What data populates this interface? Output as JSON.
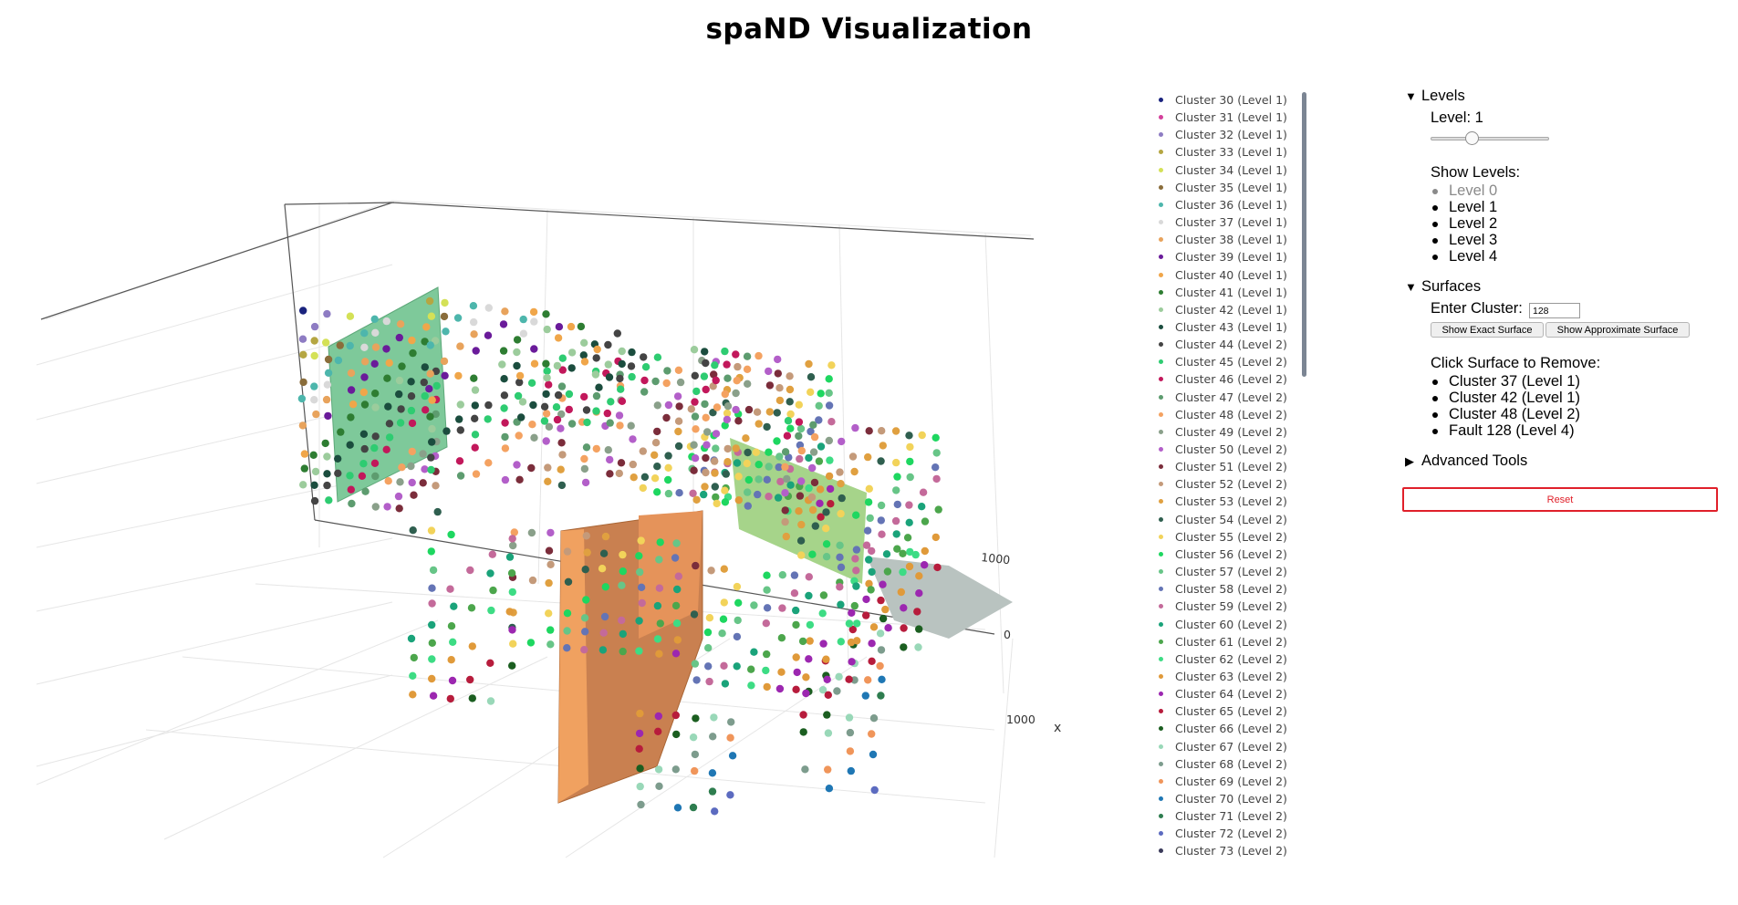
{
  "page": {
    "title": "spaND Visualization"
  },
  "plot": {
    "axis": {
      "x_title": "x",
      "tick_labels": [
        "1000",
        "0",
        "1000"
      ]
    }
  },
  "legend": {
    "items": [
      {
        "label": "Cluster 30 (Level 1)",
        "color": "#1a237e"
      },
      {
        "label": "Cluster 31 (Level 1)",
        "color": "#d4419b"
      },
      {
        "label": "Cluster 32 (Level 1)",
        "color": "#8e7cc3"
      },
      {
        "label": "Cluster 33 (Level 1)",
        "color": "#b5a642"
      },
      {
        "label": "Cluster 34 (Level 1)",
        "color": "#d4e157"
      },
      {
        "label": "Cluster 35 (Level 1)",
        "color": "#8a6d3b"
      },
      {
        "label": "Cluster 36 (Level 1)",
        "color": "#4db6ac"
      },
      {
        "label": "Cluster 37 (Level 1)",
        "color": "#d9d9d9"
      },
      {
        "label": "Cluster 38 (Level 1)",
        "color": "#e8a35c"
      },
      {
        "label": "Cluster 39 (Level 1)",
        "color": "#6a1b9a"
      },
      {
        "label": "Cluster 40 (Level 1)",
        "color": "#f0a64a"
      },
      {
        "label": "Cluster 41 (Level 1)",
        "color": "#2e7d32"
      },
      {
        "label": "Cluster 42 (Level 1)",
        "color": "#9ccc9c"
      },
      {
        "label": "Cluster 43 (Level 1)",
        "color": "#1b4d3e"
      },
      {
        "label": "Cluster 44 (Level 2)",
        "color": "#444444"
      },
      {
        "label": "Cluster 45 (Level 2)",
        "color": "#2ecc71"
      },
      {
        "label": "Cluster 46 (Level 2)",
        "color": "#c2185b"
      },
      {
        "label": "Cluster 47 (Level 2)",
        "color": "#5d9c6f"
      },
      {
        "label": "Cluster 48 (Level 2)",
        "color": "#f4a261"
      },
      {
        "label": "Cluster 49 (Level 2)",
        "color": "#8aa08a"
      },
      {
        "label": "Cluster 50 (Level 2)",
        "color": "#b35fc9"
      },
      {
        "label": "Cluster 51 (Level 2)",
        "color": "#7b2d3b"
      },
      {
        "label": "Cluster 52 (Level 2)",
        "color": "#c49a7a"
      },
      {
        "label": "Cluster 53 (Level 2)",
        "color": "#e0a040"
      },
      {
        "label": "Cluster 54 (Level 2)",
        "color": "#2f5f4f"
      },
      {
        "label": "Cluster 55 (Level 2)",
        "color": "#f2d35a"
      },
      {
        "label": "Cluster 56 (Level 2)",
        "color": "#1ed760"
      },
      {
        "label": "Cluster 57 (Level 2)",
        "color": "#67c587"
      },
      {
        "label": "Cluster 58 (Level 2)",
        "color": "#6474b5"
      },
      {
        "label": "Cluster 59 (Level 2)",
        "color": "#c46a9a"
      },
      {
        "label": "Cluster 60 (Level 2)",
        "color": "#1aa37a"
      },
      {
        "label": "Cluster 61 (Level 2)",
        "color": "#4ca64c"
      },
      {
        "label": "Cluster 62 (Level 2)",
        "color": "#3ddc84"
      },
      {
        "label": "Cluster 63 (Level 2)",
        "color": "#e09a3a"
      },
      {
        "label": "Cluster 64 (Level 2)",
        "color": "#9c27b0"
      },
      {
        "label": "Cluster 65 (Level 2)",
        "color": "#b71c3c"
      },
      {
        "label": "Cluster 66 (Level 2)",
        "color": "#1b5e20"
      },
      {
        "label": "Cluster 67 (Level 2)",
        "color": "#99d8b8"
      },
      {
        "label": "Cluster 68 (Level 2)",
        "color": "#7d9c8d"
      },
      {
        "label": "Cluster 69 (Level 2)",
        "color": "#f0955a"
      },
      {
        "label": "Cluster 70 (Level 2)",
        "color": "#1f77b4"
      },
      {
        "label": "Cluster 71 (Level 2)",
        "color": "#2e7d4f"
      },
      {
        "label": "Cluster 72 (Level 2)",
        "color": "#5c6bc0"
      },
      {
        "label": "Cluster 73 (Level 2)",
        "color": "#3a3a5a"
      }
    ]
  },
  "panel": {
    "levels": {
      "summary": "Levels",
      "slider_label": "Level: 1",
      "slider_value": 1,
      "slider_max": 4,
      "show_levels_label": "Show Levels:",
      "items": [
        {
          "label": "Level 0",
          "active": false
        },
        {
          "label": "Level 1",
          "active": true
        },
        {
          "label": "Level 2",
          "active": true
        },
        {
          "label": "Level 3",
          "active": true
        },
        {
          "label": "Level 4",
          "active": true
        }
      ]
    },
    "surfaces": {
      "summary": "Surfaces",
      "enter_cluster_label": "Enter Cluster:",
      "cluster_value": "128",
      "show_exact_label": "Show Exact Surface",
      "show_approx_label": "Show Approximate Surface",
      "remove_label": "Click Surface to Remove:",
      "surfaces_list": [
        "Cluster 37 (Level 1)",
        "Cluster 42 (Level 1)",
        "Cluster 48 (Level 2)",
        "Fault 128 (Level 4)"
      ]
    },
    "advanced": {
      "summary": "Advanced Tools"
    },
    "reset_label": "Reset",
    "reset_color": "#e0202a"
  }
}
